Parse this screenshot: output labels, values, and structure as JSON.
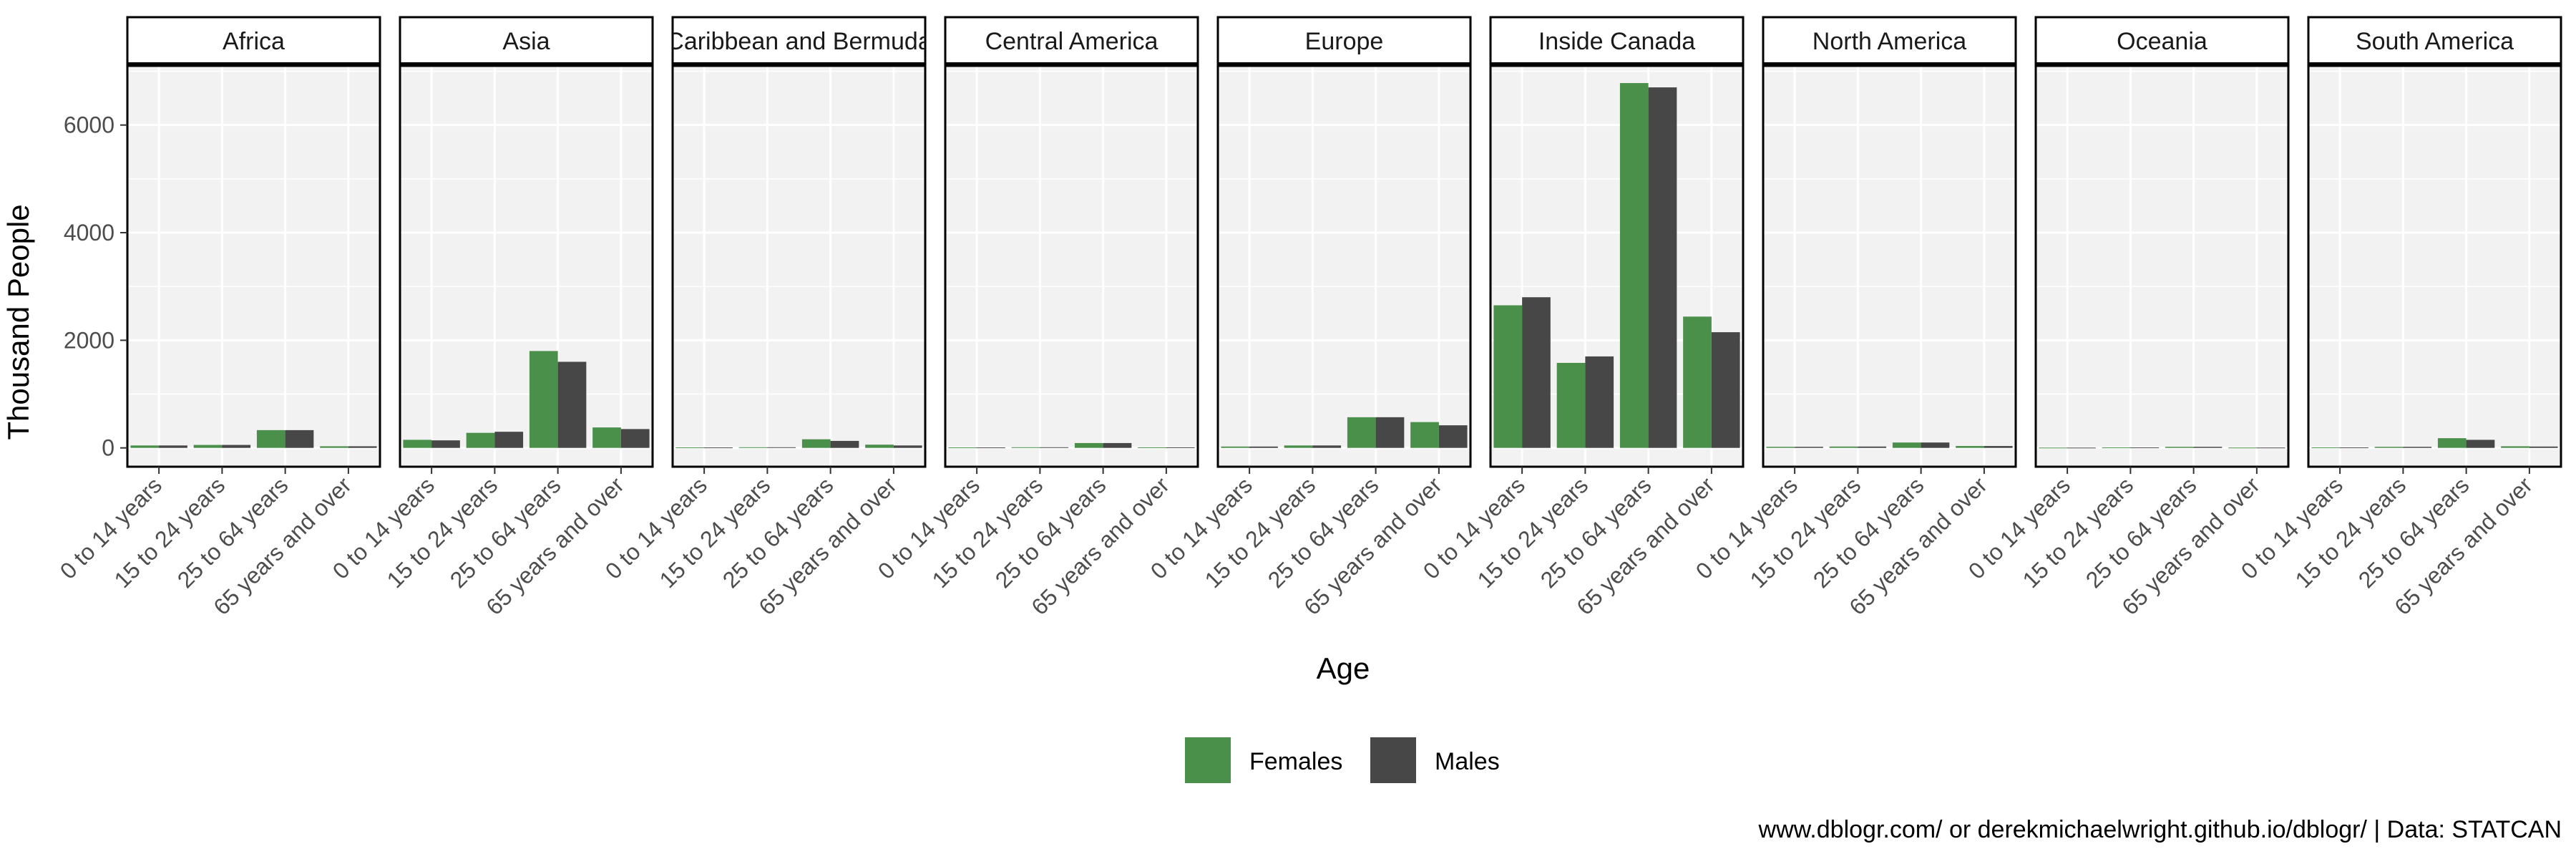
{
  "chart_data": {
    "type": "bar",
    "layout": "faceted",
    "xlabel": "Age",
    "ylabel": "Thousand People",
    "caption": "www.dblogr.com/ or derekmichaelwright.github.io/dblogr/ | Data: STATCAN",
    "ylim": [
      -350,
      7100
    ],
    "yticks": [
      0,
      2000,
      4000,
      6000
    ],
    "grid": true,
    "legend_position": "bottom",
    "categories": [
      "0 to 14 years",
      "15 to 24 years",
      "25 to 64 years",
      "65 years and over"
    ],
    "series_names": [
      "Females",
      "Males"
    ],
    "colors": {
      "Females": "#4a8f4a",
      "Males": "#474747",
      "panel": "#f2f2f2",
      "grid": "#ffffff",
      "border": "#000000"
    },
    "facets": [
      {
        "name": "Africa",
        "Females": [
          45,
          55,
          330,
          30
        ],
        "Males": [
          45,
          55,
          330,
          30
        ]
      },
      {
        "name": "Asia",
        "Females": [
          150,
          280,
          1800,
          380
        ],
        "Males": [
          140,
          300,
          1600,
          350
        ]
      },
      {
        "name": "Caribbean and Bermuda",
        "Females": [
          8,
          12,
          160,
          60
        ],
        "Males": [
          8,
          12,
          130,
          45
        ]
      },
      {
        "name": "Central America",
        "Females": [
          8,
          12,
          90,
          10
        ],
        "Males": [
          8,
          12,
          90,
          10
        ]
      },
      {
        "name": "Europe",
        "Females": [
          25,
          45,
          570,
          480
        ],
        "Males": [
          25,
          45,
          570,
          420
        ]
      },
      {
        "name": "Inside Canada",
        "Females": [
          2650,
          1580,
          6780,
          2440
        ],
        "Males": [
          2800,
          1700,
          6700,
          2150
        ]
      },
      {
        "name": "North America",
        "Females": [
          20,
          25,
          100,
          35
        ],
        "Males": [
          20,
          25,
          100,
          35
        ]
      },
      {
        "name": "Oceania",
        "Females": [
          5,
          8,
          20,
          6
        ],
        "Males": [
          5,
          8,
          20,
          6
        ]
      },
      {
        "name": "South America",
        "Females": [
          8,
          20,
          180,
          30
        ],
        "Males": [
          8,
          20,
          150,
          25
        ]
      }
    ]
  }
}
